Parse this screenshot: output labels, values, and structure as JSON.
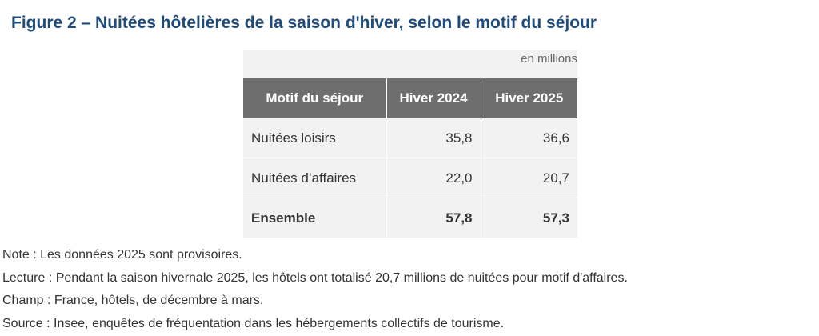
{
  "title": "Figure 2 – Nuitées hôtelières de la saison d'hiver, selon le motif du séjour",
  "table": {
    "unit": "en millions",
    "headers": [
      "Motif du séjour",
      "Hiver 2024",
      "Hiver 2025"
    ],
    "rows": [
      {
        "label": "Nuitées loisirs",
        "v2024": "35,8",
        "v2025": "36,6"
      },
      {
        "label": "Nuitées d’affaires",
        "v2024": "22,0",
        "v2025": "20,7"
      },
      {
        "label": "Ensemble",
        "v2024": "57,8",
        "v2025": "57,3"
      }
    ]
  },
  "notes": {
    "note": "Note : Les données 2025 sont provisoires.",
    "lecture": "Lecture : Pendant la saison hivernale 2025, les hôtels ont totalisé 20,7 millions de nuitées pour motif d'affaires.",
    "champ": "Champ : France, hôtels, de décembre à mars.",
    "source": "Source : Insee, enquêtes de fréquentation dans les hébergements collectifs de tourisme."
  },
  "chart_data": {
    "type": "table",
    "title": "Figure 2 – Nuitées hôtelières de la saison d'hiver, selon le motif du séjour",
    "unit": "en millions",
    "columns": [
      "Motif du séjour",
      "Hiver 2024",
      "Hiver 2025"
    ],
    "rows": [
      [
        "Nuitées loisirs",
        35.8,
        36.6
      ],
      [
        "Nuitées d’affaires",
        22.0,
        20.7
      ],
      [
        "Ensemble",
        57.8,
        57.3
      ]
    ]
  }
}
